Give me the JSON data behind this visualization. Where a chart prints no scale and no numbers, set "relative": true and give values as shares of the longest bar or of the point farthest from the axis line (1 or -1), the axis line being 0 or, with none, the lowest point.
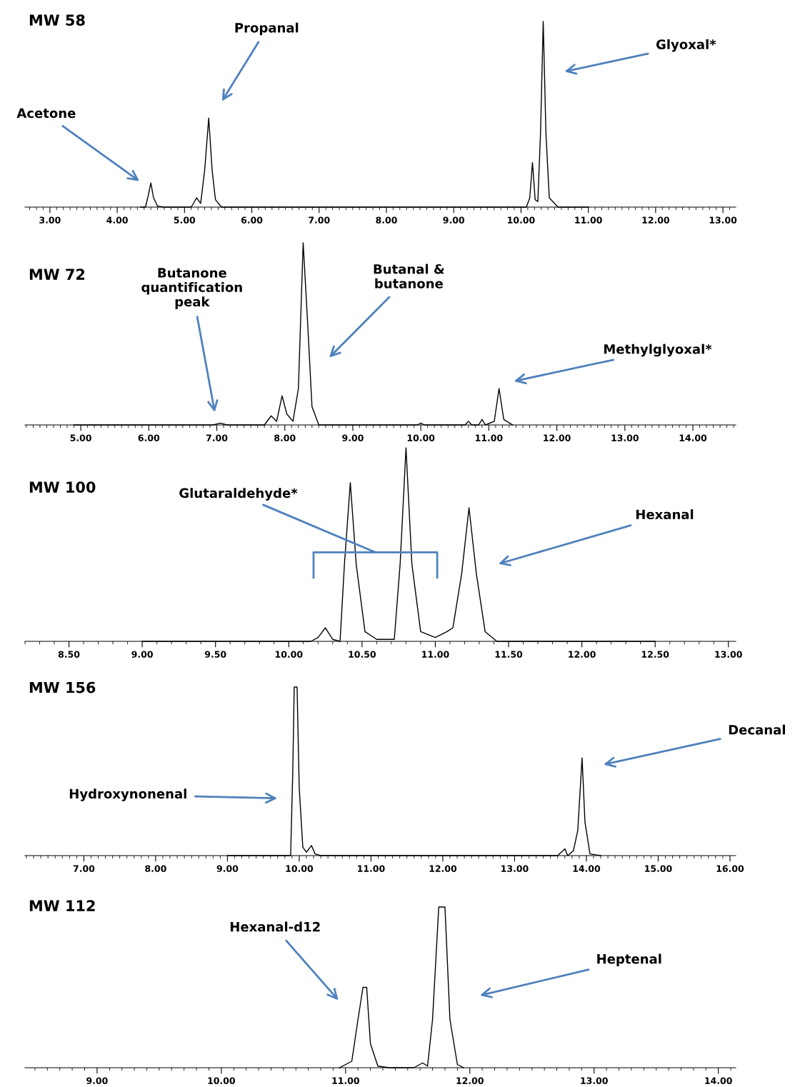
{
  "chart_data": [
    {
      "type": "line",
      "title": "MW 58",
      "relative": true,
      "xlim": [
        2.63,
        13.19
      ],
      "xticks": [
        {
          "value": 3,
          "label": "3.00"
        },
        {
          "value": 4,
          "label": "4.00"
        },
        {
          "value": 5,
          "label": "5.00"
        },
        {
          "value": 6,
          "label": "6.00"
        },
        {
          "value": 7,
          "label": "7.00"
        },
        {
          "value": 8,
          "label": "8.00"
        },
        {
          "value": 9,
          "label": "9.00"
        },
        {
          "value": 10,
          "label": "10.00"
        },
        {
          "value": 11,
          "label": "11.00"
        },
        {
          "value": 12,
          "label": "12.00"
        },
        {
          "value": 13,
          "label": "13.00"
        }
      ],
      "series": [
        {
          "color": "#000000",
          "x": [
            4.35,
            4.42,
            4.46,
            4.5,
            4.54,
            4.6,
            4.7,
            5.1,
            5.18,
            5.24,
            5.3,
            5.36,
            5.41,
            5.46,
            5.55,
            5.8,
            10.08,
            10.13,
            10.17,
            10.21,
            10.25,
            10.29,
            10.33,
            10.37,
            10.42,
            10.55,
            11.0
          ],
          "values": [
            0,
            0,
            0.06,
            0.13,
            0.05,
            0.005,
            0,
            0,
            0.05,
            0.02,
            0.2,
            0.48,
            0.2,
            0.04,
            0,
            0,
            0,
            0.05,
            0.24,
            0.04,
            0.03,
            0.4,
            1.0,
            0.4,
            0.05,
            0,
            0
          ]
        }
      ],
      "annotations": [
        "Acetone",
        "Propanal",
        "Glyoxal*"
      ]
    },
    {
      "type": "line",
      "title": "MW 72",
      "relative": true,
      "xlim": [
        4.18,
        14.63
      ],
      "xticks": [
        {
          "value": 5,
          "label": "5.00"
        },
        {
          "value": 6,
          "label": "6.00"
        },
        {
          "value": 7,
          "label": "7.00"
        },
        {
          "value": 8,
          "label": "8.00"
        },
        {
          "value": 9,
          "label": "9.00"
        },
        {
          "value": 10,
          "label": "10.00"
        },
        {
          "value": 11,
          "label": "11.00"
        },
        {
          "value": 12,
          "label": "12.00"
        },
        {
          "value": 13,
          "label": "13.00"
        },
        {
          "value": 14,
          "label": "14.00"
        }
      ],
      "series": [
        {
          "color": "#000000",
          "x": [
            4.9,
            6.95,
            7.05,
            7.15,
            7.7,
            7.8,
            7.88,
            7.96,
            8.03,
            8.12,
            8.2,
            8.27,
            8.33,
            8.4,
            8.5,
            9.95,
            10.0,
            10.05,
            10.65,
            10.7,
            10.75,
            10.85,
            10.9,
            10.95,
            11.08,
            11.15,
            11.22,
            11.35
          ],
          "values": [
            0,
            0,
            0.01,
            0,
            0,
            0.05,
            0.02,
            0.16,
            0.06,
            0.02,
            0.2,
            1.0,
            0.6,
            0.1,
            0,
            0,
            0.01,
            0,
            0,
            0.02,
            0,
            0,
            0.03,
            0,
            0.02,
            0.2,
            0.03,
            0
          ]
        }
      ],
      "annotations": [
        "Butanone\nquantification\npeak",
        "Butanal &\nbutanone",
        "Methylglyoxal*"
      ]
    },
    {
      "type": "line",
      "title": "MW 100",
      "relative": true,
      "xlim": [
        8.2,
        13.05
      ],
      "xticks": [
        {
          "value": 8.5,
          "label": "8.50"
        },
        {
          "value": 9,
          "label": "9.00"
        },
        {
          "value": 9.5,
          "label": "9.50"
        },
        {
          "value": 10,
          "label": "10.00"
        },
        {
          "value": 10.5,
          "label": "10.50"
        },
        {
          "value": 11,
          "label": "11.00"
        },
        {
          "value": 11.5,
          "label": "11.50"
        },
        {
          "value": 12,
          "label": "12.00"
        },
        {
          "value": 12.5,
          "label": "12.50"
        },
        {
          "value": 13,
          "label": "13.00"
        }
      ],
      "series": [
        {
          "color": "#000000",
          "x": [
            9.0,
            10.15,
            10.2,
            10.25,
            10.3,
            10.35,
            10.38,
            10.42,
            10.46,
            10.52,
            10.6,
            10.72,
            10.76,
            10.8,
            10.84,
            10.9,
            11.0,
            11.08,
            11.12,
            11.18,
            11.23,
            11.28,
            11.34,
            11.42,
            12.5
          ],
          "values": [
            0,
            0,
            0.02,
            0.07,
            0.01,
            0,
            0.4,
            0.82,
            0.4,
            0.05,
            0.01,
            0.01,
            0.4,
            1.0,
            0.4,
            0.05,
            0.02,
            0.05,
            0.07,
            0.35,
            0.69,
            0.35,
            0.05,
            0,
            0
          ]
        }
      ],
      "annotations": [
        "Glutaraldehyde*",
        "Hexanal"
      ]
    },
    {
      "type": "line",
      "title": "MW 156",
      "relative": true,
      "xlim": [
        6.18,
        16.08
      ],
      "xticks": [
        {
          "value": 7,
          "label": "7.00"
        },
        {
          "value": 8,
          "label": "8.00"
        },
        {
          "value": 9,
          "label": "9.00"
        },
        {
          "value": 10,
          "label": "10.00"
        },
        {
          "value": 11,
          "label": "11.00"
        },
        {
          "value": 12,
          "label": "12.00"
        },
        {
          "value": 13,
          "label": "13.00"
        },
        {
          "value": 14,
          "label": "14.00"
        },
        {
          "value": 15,
          "label": "15.00"
        },
        {
          "value": 16,
          "label": "16.00"
        }
      ],
      "series": [
        {
          "color": "#000000",
          "x": [
            9.0,
            9.88,
            9.91,
            9.93,
            9.97,
            10.0,
            10.05,
            10.1,
            10.17,
            10.22,
            10.3,
            13.6,
            13.7,
            13.74,
            13.82,
            13.88,
            13.94,
            13.98,
            14.05,
            14.2
          ],
          "values": [
            0,
            0,
            0.5,
            1.0,
            1.0,
            0.4,
            0.05,
            0.02,
            0.06,
            0.01,
            0,
            0,
            0.04,
            0,
            0.03,
            0.15,
            0.58,
            0.2,
            0.01,
            0
          ]
        }
      ],
      "annotations": [
        "Hydroxynonenal",
        "Decanal"
      ]
    },
    {
      "type": "line",
      "title": "MW 112",
      "relative": true,
      "xlim": [
        8.42,
        14.14
      ],
      "xticks": [
        {
          "value": 9,
          "label": "9.00"
        },
        {
          "value": 10,
          "label": "10.00"
        },
        {
          "value": 11,
          "label": "11.00"
        },
        {
          "value": 12,
          "label": "12.00"
        },
        {
          "value": 13,
          "label": "13.00"
        },
        {
          "value": 14,
          "label": "14.00"
        }
      ],
      "series": [
        {
          "color": "#000000",
          "x": [
            10.95,
            11.05,
            11.1,
            11.14,
            11.17,
            11.2,
            11.26,
            11.35,
            11.55,
            11.62,
            11.66,
            11.7,
            11.75,
            11.8,
            11.84,
            11.9,
            11.95
          ],
          "values": [
            0,
            0.04,
            0.3,
            0.5,
            0.5,
            0.15,
            0.01,
            0,
            0,
            0.03,
            0.01,
            0.3,
            1.0,
            1.0,
            0.3,
            0.02,
            0
          ]
        }
      ],
      "annotations": [
        "Hexanal-d12",
        "Heptenal"
      ]
    }
  ]
}
